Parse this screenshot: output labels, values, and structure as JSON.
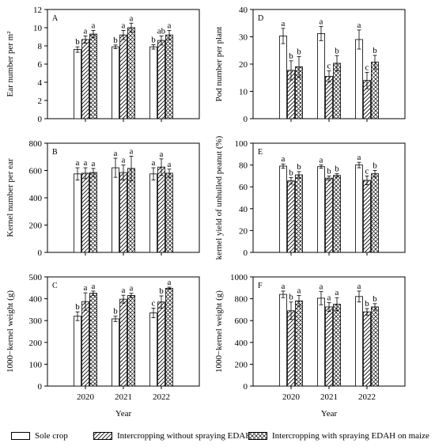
{
  "chart_data": [
    {
      "type": "bar",
      "panel_label": "A",
      "ylabel": "Ear number per m²",
      "xlabel": "",
      "ylim": [
        0,
        12
      ],
      "yticks": [
        0,
        2,
        4,
        6,
        8,
        10,
        12
      ],
      "categories": [
        "2020",
        "2021",
        "2022"
      ],
      "show_xticklabels": false,
      "series": [
        {
          "values": [
            7.6,
            7.9,
            7.9
          ],
          "errors": [
            0.3,
            0.2,
            0.25
          ],
          "letters": [
            "b",
            "b",
            "b"
          ]
        },
        {
          "values": [
            8.7,
            9.2,
            8.6
          ],
          "errors": [
            0.4,
            0.5,
            0.5
          ],
          "letters": [
            "a",
            "a",
            "ab"
          ]
        },
        {
          "values": [
            9.3,
            10.0,
            9.2
          ],
          "errors": [
            0.4,
            0.5,
            0.5
          ],
          "letters": [
            "a",
            "a",
            "a"
          ]
        }
      ]
    },
    {
      "type": "bar",
      "panel_label": "D",
      "ylabel": "Pod number per plant",
      "xlabel": "",
      "ylim": [
        0,
        40
      ],
      "yticks": [
        0,
        10,
        20,
        30,
        40
      ],
      "categories": [
        "2020",
        "2021",
        "2022"
      ],
      "show_xticklabels": false,
      "series": [
        {
          "values": [
            30.3,
            31.2,
            29.0
          ],
          "errors": [
            2.8,
            2.6,
            3.5
          ],
          "letters": [
            "a",
            "a",
            "a"
          ]
        },
        {
          "values": [
            17.7,
            15.5,
            14.0
          ],
          "errors": [
            3.5,
            2.0,
            3.0
          ],
          "letters": [
            "b",
            "c",
            "c"
          ]
        },
        {
          "values": [
            19.0,
            20.3,
            20.7
          ],
          "errors": [
            3.8,
            2.8,
            2.5
          ],
          "letters": [
            "b",
            "b",
            "b"
          ]
        }
      ]
    },
    {
      "type": "bar",
      "panel_label": "B",
      "ylabel": "Kernel number per ear",
      "xlabel": "",
      "ylim": [
        0,
        800
      ],
      "yticks": [
        0,
        200,
        400,
        600,
        800
      ],
      "categories": [
        "2020",
        "2021",
        "2022"
      ],
      "show_xticklabels": false,
      "series": [
        {
          "values": [
            575,
            620,
            575
          ],
          "errors": [
            45,
            70,
            45
          ],
          "letters": [
            "a",
            "a",
            "a"
          ]
        },
        {
          "values": [
            580,
            585,
            625
          ],
          "errors": [
            40,
            55,
            60
          ],
          "letters": [
            "a",
            "a",
            "a"
          ]
        },
        {
          "values": [
            585,
            615,
            580
          ],
          "errors": [
            30,
            90,
            30
          ],
          "letters": [
            "a",
            "a",
            "a"
          ]
        }
      ]
    },
    {
      "type": "bar",
      "panel_label": "E",
      "ylabel": "kernel yield of unhulled peanut (%)",
      "xlabel": "",
      "ylim": [
        0,
        100
      ],
      "yticks": [
        0,
        20,
        40,
        60,
        80,
        100
      ],
      "categories": [
        "2020",
        "2021",
        "2022"
      ],
      "show_xticklabels": false,
      "series": [
        {
          "values": [
            79,
            78.5,
            80
          ],
          "errors": [
            2,
            1.5,
            2.5
          ],
          "letters": [
            "a",
            "a",
            "a"
          ]
        },
        {
          "values": [
            65.5,
            68,
            66
          ],
          "errors": [
            3,
            2,
            4
          ],
          "letters": [
            "b",
            "b",
            "c"
          ]
        },
        {
          "values": [
            71,
            70.5,
            72
          ],
          "errors": [
            3,
            1.5,
            3
          ],
          "letters": [
            "b",
            "b",
            "b"
          ]
        }
      ]
    },
    {
      "type": "bar",
      "panel_label": "C",
      "ylabel": "1000−kernel weight (g)",
      "xlabel": "Year",
      "ylim": [
        0,
        500
      ],
      "yticks": [
        0,
        100,
        200,
        300,
        400,
        500
      ],
      "categories": [
        "2020",
        "2021",
        "2022"
      ],
      "show_xticklabels": true,
      "series": [
        {
          "values": [
            320,
            308,
            335
          ],
          "errors": [
            20,
            12,
            22
          ],
          "letters": [
            "b",
            "b",
            "c"
          ]
        },
        {
          "values": [
            387,
            398,
            385
          ],
          "errors": [
            40,
            18,
            28
          ],
          "letters": [
            "a",
            "a",
            "b"
          ]
        },
        {
          "values": [
            425,
            415,
            448
          ],
          "errors": [
            10,
            10,
            5
          ],
          "letters": [
            "a",
            "a",
            "a"
          ]
        }
      ]
    },
    {
      "type": "bar",
      "panel_label": "F",
      "ylabel": "1000−kernel weight (g)",
      "xlabel": "Year",
      "ylim": [
        0,
        1000
      ],
      "yticks": [
        0,
        200,
        400,
        600,
        800,
        1000
      ],
      "categories": [
        "2020",
        "2021",
        "2022"
      ],
      "show_xticklabels": true,
      "series": [
        {
          "values": [
            840,
            805,
            820
          ],
          "errors": [
            30,
            60,
            50
          ],
          "letters": [
            "a",
            "a",
            "a"
          ]
        },
        {
          "values": [
            690,
            725,
            680
          ],
          "errors": [
            80,
            40,
            30
          ],
          "letters": [
            "b",
            "a",
            "b"
          ]
        },
        {
          "values": [
            780,
            750,
            725
          ],
          "errors": [
            50,
            60,
            30
          ],
          "letters": [
            "a",
            "a",
            "b"
          ]
        }
      ]
    }
  ],
  "legend": [
    {
      "label": "Sole crop",
      "pattern": "blank"
    },
    {
      "label": "Intercropping without spraying EDAH",
      "pattern": "diagonal"
    },
    {
      "label": "Intercropping with spraying EDAH on maize",
      "pattern": "crosshatch"
    }
  ]
}
